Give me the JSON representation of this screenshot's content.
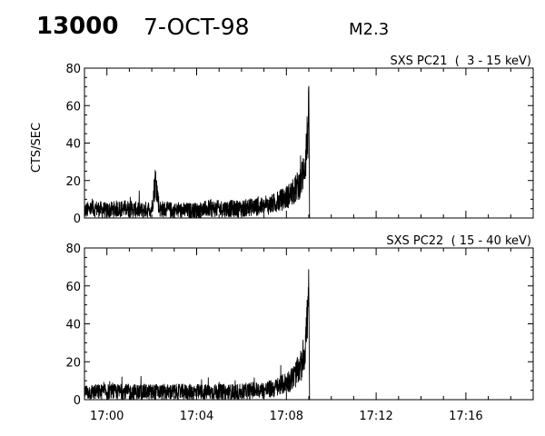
{
  "header": {
    "event_id": "13000",
    "date": "7-OCT-98",
    "flare_class": "M2.3"
  },
  "chart_data": [
    {
      "type": "line",
      "title": "SXS PC21  (  3 - 15 keV)",
      "ylabel": "CTS/SEC",
      "xlabel": "",
      "ylim": [
        0,
        80
      ],
      "yticks": [
        "0",
        "20",
        "40",
        "60",
        "80"
      ],
      "xlim": [
        "16:59",
        "17:19"
      ],
      "xticks": [],
      "grid": false,
      "series": [
        {
          "points": [
            [
              "16:59:00",
              4
            ],
            [
              "16:59:30",
              5
            ],
            [
              "17:00:00",
              4
            ],
            [
              "17:00:30",
              5
            ],
            [
              "17:01:00",
              5
            ],
            [
              "17:01:30",
              4
            ],
            [
              "17:02:00",
              5
            ],
            [
              "17:02:10",
              21
            ],
            [
              "17:02:20",
              5
            ],
            [
              "17:03:00",
              4
            ],
            [
              "17:03:30",
              4
            ],
            [
              "17:04:00",
              4
            ],
            [
              "17:04:30",
              5
            ],
            [
              "17:05:00",
              5
            ],
            [
              "17:05:30",
              5
            ],
            [
              "17:06:00",
              5
            ],
            [
              "17:06:30",
              6
            ],
            [
              "17:07:00",
              6
            ],
            [
              "17:07:30",
              8
            ],
            [
              "17:08:00",
              11
            ],
            [
              "17:08:20",
              14
            ],
            [
              "17:08:40",
              20
            ],
            [
              "17:08:50",
              30
            ],
            [
              "17:08:55",
              40
            ],
            [
              "17:09:00",
              53
            ],
            [
              "17:09:02",
              0
            ]
          ]
        }
      ]
    },
    {
      "type": "line",
      "title": "SXS PC22  ( 15 - 40 keV)",
      "ylabel": "",
      "xlabel": "",
      "ylim": [
        0,
        80
      ],
      "yticks": [
        "0",
        "20",
        "40",
        "60",
        "80"
      ],
      "xlim": [
        "16:59",
        "17:19"
      ],
      "xticks": [
        "17:00",
        "17:04",
        "17:08",
        "17:12",
        "17:16"
      ],
      "grid": false,
      "series": [
        {
          "points": [
            [
              "16:59:00",
              4
            ],
            [
              "16:59:30",
              4
            ],
            [
              "17:00:00",
              4
            ],
            [
              "17:00:30",
              4
            ],
            [
              "17:01:00",
              4
            ],
            [
              "17:01:30",
              4
            ],
            [
              "17:02:00",
              4
            ],
            [
              "17:02:30",
              4
            ],
            [
              "17:03:00",
              4
            ],
            [
              "17:03:30",
              4
            ],
            [
              "17:04:00",
              4
            ],
            [
              "17:04:30",
              4
            ],
            [
              "17:05:00",
              4
            ],
            [
              "17:05:30",
              4
            ],
            [
              "17:06:00",
              4
            ],
            [
              "17:06:30",
              5
            ],
            [
              "17:07:00",
              5
            ],
            [
              "17:07:30",
              6
            ],
            [
              "17:08:00",
              9
            ],
            [
              "17:08:20",
              12
            ],
            [
              "17:08:40",
              18
            ],
            [
              "17:08:50",
              28
            ],
            [
              "17:08:55",
              40
            ],
            [
              "17:09:00",
              54
            ],
            [
              "17:09:02",
              0
            ]
          ]
        }
      ]
    }
  ]
}
